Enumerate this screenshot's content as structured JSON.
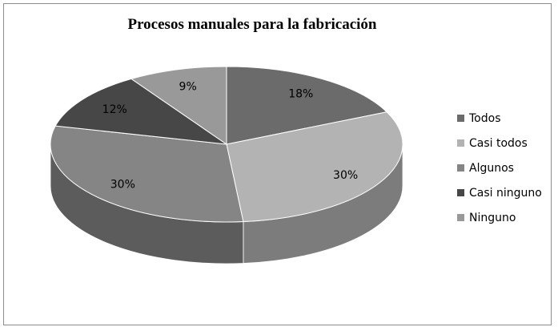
{
  "chart_data": {
    "type": "pie",
    "title": "Procesos manuales para la fabricación",
    "three_d": true,
    "categories": [
      "Todos",
      "Casi todos",
      "Algunos",
      "Casi ninguno",
      "Ninguno"
    ],
    "values": [
      18,
      30,
      30,
      12,
      9
    ],
    "labels": [
      "18%",
      "30%",
      "30%",
      "12%",
      "9%"
    ],
    "colors": [
      "#6b6b6b",
      "#b3b3b3",
      "#858585",
      "#474747",
      "#999999"
    ],
    "side_colors": [
      "#4a4a4a",
      "#7c7c7c",
      "#5c5c5c",
      "#303030",
      "#6a6a6a"
    ],
    "legend_position": "right"
  }
}
